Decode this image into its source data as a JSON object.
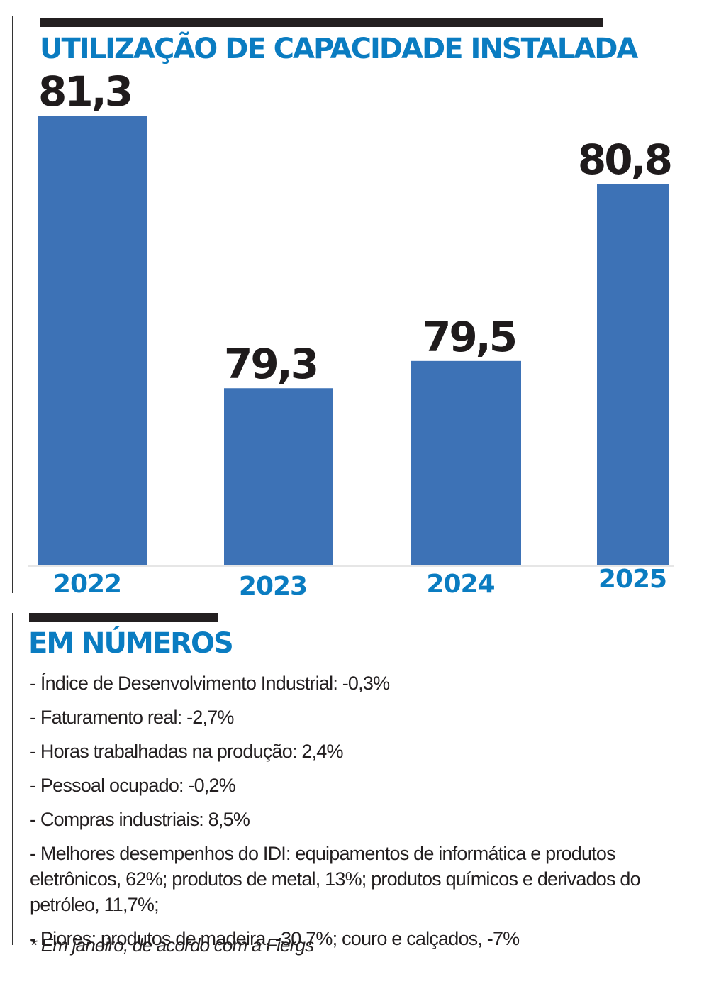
{
  "chart_data": {
    "type": "bar",
    "title": "UTILIZAÇÃO DE CAPACIDADE INSTALADA",
    "categories": [
      "2022",
      "2023",
      "2024",
      "2025"
    ],
    "values": [
      81.3,
      79.3,
      79.5,
      80.8
    ],
    "value_labels": [
      "81,3",
      "79,3",
      "79,5",
      "80,8"
    ],
    "xlabel": "",
    "ylabel": "",
    "ylim": [
      78.0,
      81.5
    ],
    "grid": false,
    "legend": "none",
    "colors": {
      "bar": "#3d72b6",
      "title": "#0a7cc1",
      "category_label": "#0a7cc1",
      "value_label": "#1f1b1c"
    }
  },
  "section": {
    "title": "EM NÚMEROS",
    "items": [
      "- Índice de Desenvolvimento Industrial: -0,3%",
      "- Faturamento real: -2,7%",
      "- Horas trabalhadas na produção: 2,4%",
      "- Pessoal ocupado: -0,2%",
      "- Compras industriais: 8,5%",
      "- Melhores desempenhos do IDI: equipamentos de informática e produtos eletrônicos, 62%; produtos de metal, 13%; produtos químicos e derivados do petróleo, 11,7%;",
      "- Piores: produtos de madeira, -30,7%; couro e calçados, -7%"
    ],
    "footnote": "* Em janeiro, de acordo com a Fiergs"
  }
}
